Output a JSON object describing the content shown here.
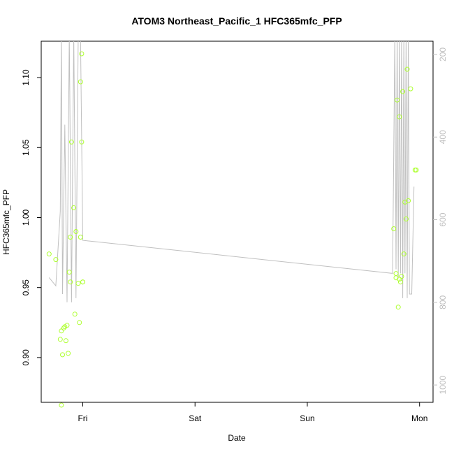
{
  "chart_data": {
    "type": "scatter",
    "title": "ATOM3 Northeast_Pacific_1 HFC365mfc_PFP",
    "xlabel": "Date",
    "ylabel": "HFC365mfc_PFP",
    "x_ticks": [
      "Fri",
      "Sat",
      "Sun",
      "Mon"
    ],
    "x_tick_positions_days": [
      1,
      2,
      3,
      4
    ],
    "xlim_days": [
      0.63,
      4.12
    ],
    "ylim": [
      0.868,
      1.126
    ],
    "y_ticks": [
      0.9,
      0.95,
      1.0,
      1.05,
      1.1
    ],
    "y_tick_labels": [
      "0.90",
      "0.95",
      "1.00",
      "1.05",
      "1.10"
    ],
    "y2_ticks": [
      200,
      400,
      600,
      800,
      1000
    ],
    "y2_tick_labels": [
      "200",
      "400",
      "600",
      "800",
      "1000"
    ],
    "y2_lim_reversed": [
      1042,
      168
    ],
    "colors": {
      "points": "#adff2f",
      "altitude": "#c0c0c0",
      "axis": "#000000",
      "right_axis": "#bebebe"
    },
    "series": [
      {
        "kind": "points",
        "x_days": [
          0.7,
          0.76,
          0.8,
          0.81,
          0.81,
          0.82,
          0.83,
          0.84,
          0.85,
          0.86,
          0.87,
          0.88,
          0.89,
          0.89,
          0.9,
          0.92,
          0.93,
          0.94,
          0.96,
          0.97,
          0.98,
          0.99,
          0.99,
          1.0,
          1.0,
          0.98,
          3.77,
          3.79,
          3.79,
          3.8,
          3.81,
          3.82,
          3.82,
          3.83,
          3.84,
          3.85,
          3.86,
          3.87,
          3.88,
          3.89,
          3.9,
          3.92,
          3.96,
          3.97
        ],
        "y": [
          0.974,
          0.97,
          0.913,
          0.919,
          0.866,
          0.902,
          0.921,
          0.922,
          0.912,
          0.923,
          0.903,
          0.961,
          0.986,
          0.954,
          1.054,
          1.007,
          0.931,
          0.99,
          0.953,
          0.925,
          1.097,
          1.117,
          1.054,
          0.954,
          0.954,
          0.986,
          0.992,
          0.96,
          0.957,
          1.084,
          0.936,
          0.956,
          1.072,
          0.954,
          0.958,
          1.09,
          0.974,
          1.011,
          0.999,
          1.106,
          1.012,
          1.092,
          1.034,
          1.034
        ]
      },
      {
        "kind": "altitude_line",
        "x_days": [
          0.7,
          0.76,
          0.8,
          0.81,
          0.82,
          0.84,
          0.86,
          0.88,
          0.9,
          0.92,
          0.94,
          0.96,
          0.98,
          1.0,
          1.0,
          3.76,
          3.78,
          3.79,
          3.8,
          3.81,
          3.82,
          3.83,
          3.84,
          3.85,
          3.86,
          3.87,
          3.88,
          3.89,
          3.9,
          3.91,
          3.92,
          3.93,
          3.95
        ],
        "altitude": [
          740,
          760,
          580,
          150,
          780,
          370,
          800,
          150,
          800,
          150,
          790,
          150,
          160,
          650,
          650,
          730,
          150,
          720,
          150,
          740,
          150,
          730,
          150,
          790,
          150,
          730,
          150,
          790,
          150,
          780,
          780,
          780,
          520
        ]
      }
    ]
  }
}
